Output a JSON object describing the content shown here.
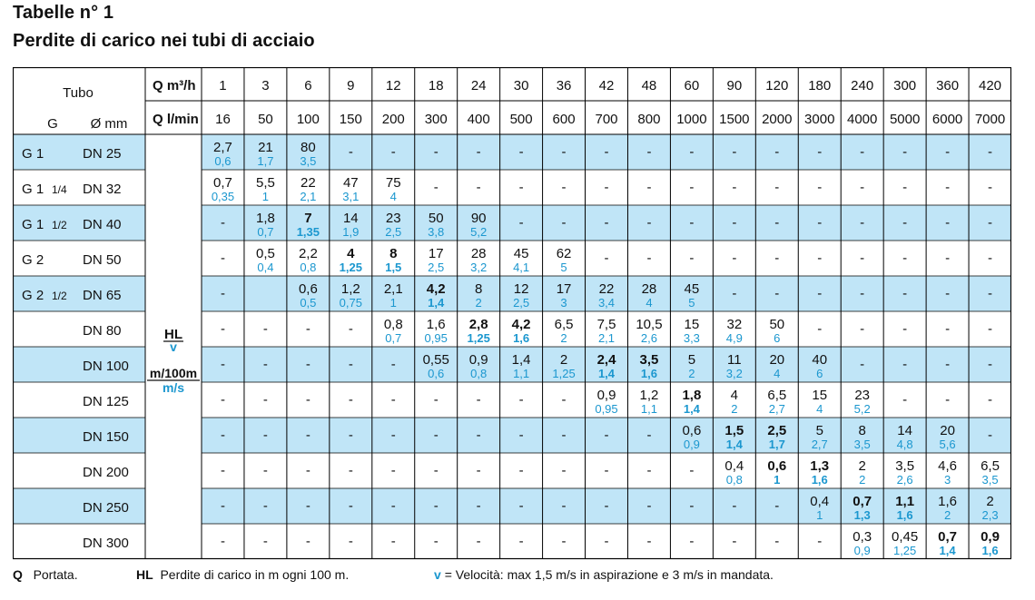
{
  "title": "Tabelle n° 1",
  "subtitle": "Perdite di carico nei tubi di acciaio",
  "header": {
    "tubo": "Tubo",
    "g": "G",
    "mm": "Ø mm",
    "q_m3h_label": "Q m³/h",
    "q_lmin_label": "Q l/min",
    "q_m3h": [
      "1",
      "3",
      "6",
      "9",
      "12",
      "18",
      "24",
      "30",
      "36",
      "42",
      "48",
      "60",
      "90",
      "120",
      "180",
      "240",
      "300",
      "360",
      "420"
    ],
    "q_lmin": [
      "16",
      "50",
      "100",
      "150",
      "200",
      "300",
      "400",
      "500",
      "600",
      "700",
      "800",
      "1000",
      "1500",
      "2000",
      "3000",
      "4000",
      "5000",
      "6000",
      "7000"
    ]
  },
  "legend_cell": {
    "hl": "HL",
    "v": "v",
    "unit_hl": "m/100m",
    "unit_v": "m/s"
  },
  "colors": {
    "band": "#c0e5f7",
    "velocity": "#1b97cf",
    "grid": "#000000"
  },
  "rows": [
    {
      "g": "G 1",
      "g_frac": "",
      "dn": "DN 25",
      "band": true,
      "cells": [
        [
          "2,7",
          "0,6",
          0
        ],
        [
          "21",
          "1,7",
          0
        ],
        [
          "80",
          "3,5",
          0
        ],
        "-",
        "-",
        "-",
        "-",
        "-",
        "-",
        "-",
        "-",
        "-",
        "-",
        "-",
        "-",
        "-",
        "-",
        "-",
        "-"
      ]
    },
    {
      "g": "G 1",
      "g_frac": "1/4",
      "dn": "DN 32",
      "band": false,
      "cells": [
        [
          "0,7",
          "0,35",
          0
        ],
        [
          "5,5",
          "1",
          0
        ],
        [
          "22",
          "2,1",
          0
        ],
        [
          "47",
          "3,1",
          0
        ],
        [
          "75",
          "4",
          0
        ],
        "-",
        "-",
        "-",
        "-",
        "-",
        "-",
        "-",
        "-",
        "-",
        "-",
        "-",
        "-",
        "-",
        "-"
      ]
    },
    {
      "g": "G 1",
      "g_frac": "1/2",
      "dn": "DN 40",
      "band": true,
      "cells": [
        "-",
        [
          "1,8",
          "0,7",
          0
        ],
        [
          "7",
          "1,35",
          1
        ],
        [
          "14",
          "1,9",
          0
        ],
        [
          "23",
          "2,5",
          0
        ],
        [
          "50",
          "3,8",
          0
        ],
        [
          "90",
          "5,2",
          0
        ],
        "-",
        "-",
        "-",
        "-",
        "-",
        "-",
        "-",
        "-",
        "-",
        "-",
        "-",
        "-"
      ]
    },
    {
      "g": "G 2",
      "g_frac": "",
      "dn": "DN 50",
      "band": false,
      "cells": [
        "-",
        [
          "0,5",
          "0,4",
          0
        ],
        [
          "2,2",
          "0,8",
          0
        ],
        [
          "4",
          "1,25",
          1
        ],
        [
          "8",
          "1,5",
          1
        ],
        [
          "17",
          "2,5",
          0
        ],
        [
          "28",
          "3,2",
          0
        ],
        [
          "45",
          "4,1",
          0
        ],
        [
          "62",
          "5",
          0
        ],
        "-",
        "-",
        "-",
        "-",
        "-",
        "-",
        "-",
        "-",
        "-",
        "-"
      ]
    },
    {
      "g": "G 2",
      "g_frac": "1/2",
      "dn": "DN 65",
      "band": true,
      "cells": [
        "-",
        "",
        [
          "0,6",
          "0,5",
          0
        ],
        [
          "1,2",
          "0,75",
          0
        ],
        [
          "2,1",
          "1",
          0
        ],
        [
          "4,2",
          "1,4",
          1
        ],
        [
          "8",
          "2",
          0
        ],
        [
          "12",
          "2,5",
          0
        ],
        [
          "17",
          "3",
          0
        ],
        [
          "22",
          "3,4",
          0
        ],
        [
          "28",
          "4",
          0
        ],
        [
          "45",
          "5",
          0
        ],
        "-",
        "-",
        "-",
        "-",
        "-",
        "-",
        "-"
      ]
    },
    {
      "g": "",
      "g_frac": "",
      "dn": "DN 80",
      "band": false,
      "cells": [
        "-",
        "-",
        "-",
        "-",
        [
          "0,8",
          "0,7",
          0
        ],
        [
          "1,6",
          "0,95",
          0
        ],
        [
          "2,8",
          "1,25",
          1
        ],
        [
          "4,2",
          "1,6",
          1
        ],
        [
          "6,5",
          "2",
          0
        ],
        [
          "7,5",
          "2,1",
          0
        ],
        [
          "10,5",
          "2,6",
          0
        ],
        [
          "15",
          "3,3",
          0
        ],
        [
          "32",
          "4,9",
          0
        ],
        [
          "50",
          "6",
          0
        ],
        "-",
        "-",
        "-",
        "-",
        "-"
      ]
    },
    {
      "g": "",
      "g_frac": "",
      "dn": "DN 100",
      "band": true,
      "cells": [
        "-",
        "-",
        "-",
        "-",
        "-",
        [
          "0,55",
          "0,6",
          0
        ],
        [
          "0,9",
          "0,8",
          0
        ],
        [
          "1,4",
          "1,1",
          0
        ],
        [
          "2",
          "1,25",
          0
        ],
        [
          "2,4",
          "1,4",
          1
        ],
        [
          "3,5",
          "1,6",
          1
        ],
        [
          "5",
          "2",
          0
        ],
        [
          "11",
          "3,2",
          0
        ],
        [
          "20",
          "4",
          0
        ],
        [
          "40",
          "6",
          0
        ],
        "-",
        "-",
        "-",
        "-"
      ]
    },
    {
      "g": "",
      "g_frac": "",
      "dn": "DN 125",
      "band": false,
      "cells": [
        "-",
        "-",
        "-",
        "-",
        "-",
        "-",
        "-",
        "-",
        "-",
        [
          "0,9",
          "0,95",
          0
        ],
        [
          "1,2",
          "1,1",
          0
        ],
        [
          "1,8",
          "1,4",
          1
        ],
        [
          "4",
          "2",
          0
        ],
        [
          "6,5",
          "2,7",
          0
        ],
        [
          "15",
          "4",
          0
        ],
        [
          "23",
          "5,2",
          0
        ],
        "-",
        "-",
        "-"
      ]
    },
    {
      "g": "",
      "g_frac": "",
      "dn": "DN 150",
      "band": true,
      "cells": [
        "-",
        "-",
        "-",
        "-",
        "-",
        "-",
        "-",
        "-",
        "-",
        "-",
        "-",
        [
          "0,6",
          "0,9",
          0
        ],
        [
          "1,5",
          "1,4",
          1
        ],
        [
          "2,5",
          "1,7",
          1
        ],
        [
          "5",
          "2,7",
          0
        ],
        [
          "8",
          "3,5",
          0
        ],
        [
          "14",
          "4,8",
          0
        ],
        [
          "20",
          "5,6",
          0
        ],
        "-"
      ]
    },
    {
      "g": "",
      "g_frac": "",
      "dn": "DN 200",
      "band": false,
      "cells": [
        "-",
        "-",
        "-",
        "-",
        "-",
        "-",
        "-",
        "-",
        "-",
        "-",
        "-",
        "-",
        [
          "0,4",
          "0,8",
          0
        ],
        [
          "0,6",
          "1",
          1
        ],
        [
          "1,3",
          "1,6",
          1
        ],
        [
          "2",
          "2",
          0
        ],
        [
          "3,5",
          "2,6",
          0
        ],
        [
          "4,6",
          "3",
          0
        ],
        [
          "6,5",
          "3,5",
          0
        ]
      ]
    },
    {
      "g": "",
      "g_frac": "",
      "dn": "DN 250",
      "band": true,
      "cells": [
        "-",
        "-",
        "-",
        "-",
        "-",
        "-",
        "-",
        "-",
        "-",
        "-",
        "-",
        "-",
        "-",
        "-",
        [
          "0,4",
          "1",
          0
        ],
        [
          "0,7",
          "1,3",
          1
        ],
        [
          "1,1",
          "1,6",
          1
        ],
        [
          "1,6",
          "2",
          0
        ],
        [
          "2",
          "2,3",
          0
        ]
      ]
    },
    {
      "g": "",
      "g_frac": "",
      "dn": "DN 300",
      "band": false,
      "cells": [
        "-",
        "-",
        "-",
        "-",
        "-",
        "-",
        "-",
        "-",
        "-",
        "-",
        "-",
        "-",
        "-",
        "-",
        "-",
        [
          "0,3",
          "0,9",
          0
        ],
        [
          "0,45",
          "1,25",
          0
        ],
        [
          "0,7",
          "1,4",
          1
        ],
        [
          "0,9",
          "1,6",
          1
        ]
      ]
    }
  ],
  "footer": {
    "q_sym": "Q",
    "q_text": "Portata.",
    "hl_sym": "HL",
    "hl_text": "Perdite di carico in m ogni 100 m.",
    "v_sym": "v",
    "v_text": "= Velocità: max 1,5 m/s in aspirazione e 3 m/s in mandata."
  }
}
